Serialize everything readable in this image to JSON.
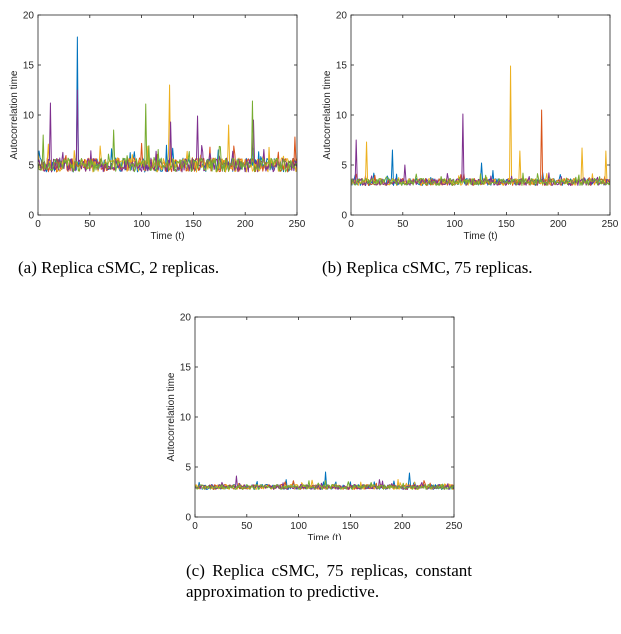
{
  "series_colors": [
    "#0072BD",
    "#D95319",
    "#EDB120",
    "#7E2F8E",
    "#77AC30"
  ],
  "chart_data": [
    {
      "type": "line",
      "id": "a",
      "xlabel": "Time (t)",
      "ylabel": "Autocorrelation time",
      "xlim": [
        0,
        250
      ],
      "ylim": [
        0,
        20
      ],
      "xticks": [
        0,
        50,
        100,
        150,
        200,
        250
      ],
      "yticks": [
        0,
        5,
        10,
        15,
        20
      ],
      "grid": false,
      "legend": "none",
      "n_series": 5,
      "baseline": 5.0,
      "noise": 0.7,
      "spikes": [
        {
          "x": 38,
          "y": 17.8,
          "series": 0
        },
        {
          "x": 38,
          "y": 12.5,
          "series": 3
        },
        {
          "x": 12,
          "y": 11.2,
          "series": 3
        },
        {
          "x": 5,
          "y": 8.0,
          "series": 4
        },
        {
          "x": 73,
          "y": 8.5,
          "series": 4
        },
        {
          "x": 104,
          "y": 11.1,
          "series": 4
        },
        {
          "x": 127,
          "y": 13.0,
          "series": 2
        },
        {
          "x": 128,
          "y": 9.3,
          "series": 3
        },
        {
          "x": 154,
          "y": 9.9,
          "series": 3
        },
        {
          "x": 184,
          "y": 9.0,
          "series": 2
        },
        {
          "x": 207,
          "y": 11.4,
          "series": 4
        },
        {
          "x": 208,
          "y": 9.5,
          "series": 3
        },
        {
          "x": 248,
          "y": 7.8,
          "series": 1
        }
      ]
    },
    {
      "type": "line",
      "id": "b",
      "xlabel": "Time (t)",
      "ylabel": "Autocorrelation time",
      "xlim": [
        0,
        250
      ],
      "ylim": [
        0,
        20
      ],
      "xticks": [
        0,
        50,
        100,
        150,
        200,
        250
      ],
      "yticks": [
        0,
        5,
        10,
        15,
        20
      ],
      "grid": false,
      "legend": "none",
      "n_series": 5,
      "baseline": 3.3,
      "noise": 0.35,
      "spikes": [
        {
          "x": 5,
          "y": 7.5,
          "series": 3
        },
        {
          "x": 15,
          "y": 7.3,
          "series": 2
        },
        {
          "x": 40,
          "y": 6.5,
          "series": 0
        },
        {
          "x": 52,
          "y": 5.0,
          "series": 3
        },
        {
          "x": 108,
          "y": 10.1,
          "series": 3
        },
        {
          "x": 126,
          "y": 5.2,
          "series": 0
        },
        {
          "x": 154,
          "y": 14.9,
          "series": 2
        },
        {
          "x": 163,
          "y": 6.4,
          "series": 2
        },
        {
          "x": 184,
          "y": 10.5,
          "series": 1
        },
        {
          "x": 223,
          "y": 6.7,
          "series": 2
        },
        {
          "x": 246,
          "y": 6.4,
          "series": 2
        }
      ]
    },
    {
      "type": "line",
      "id": "c",
      "xlabel": "Time (t)",
      "ylabel": "Autocorrelation time",
      "xlim": [
        0,
        250
      ],
      "ylim": [
        0,
        20
      ],
      "xticks": [
        0,
        50,
        100,
        150,
        200,
        250
      ],
      "yticks": [
        0,
        5,
        10,
        15,
        20
      ],
      "grid": false,
      "legend": "none",
      "n_series": 5,
      "baseline": 3.0,
      "noise": 0.25,
      "spikes": [
        {
          "x": 40,
          "y": 4.1,
          "series": 3
        },
        {
          "x": 126,
          "y": 4.5,
          "series": 0
        },
        {
          "x": 207,
          "y": 4.4,
          "series": 0
        }
      ]
    }
  ],
  "captions": {
    "a": "(a) Replica cSMC, 2 replicas.",
    "b": "(b) Replica cSMC, 75 replicas.",
    "c": "(c) Replica cSMC, 75 replicas, constant approximation to predictive."
  }
}
